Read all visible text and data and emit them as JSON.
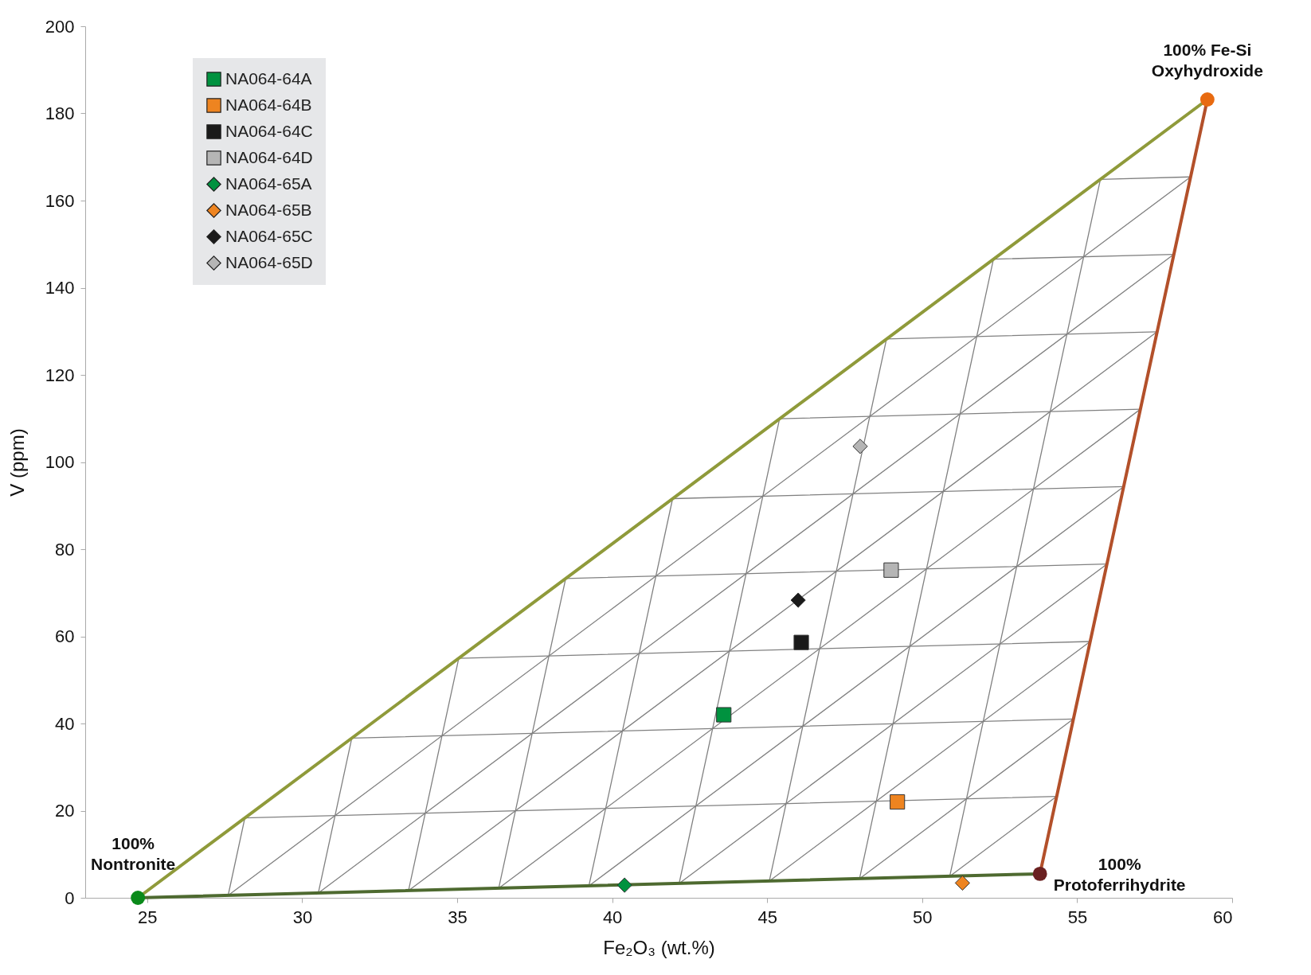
{
  "chart_data": {
    "type": "scatter",
    "xlabel": "Fe₂O₃ (wt.%)",
    "ylabel": "V (ppm)",
    "xlim": [
      23,
      60
    ],
    "ylim": [
      0,
      200
    ],
    "xticks": [
      25,
      30,
      35,
      40,
      45,
      50,
      55,
      60
    ],
    "yticks": [
      0,
      20,
      40,
      60,
      80,
      100,
      120,
      140,
      160,
      180,
      200
    ],
    "grid": false,
    "legend": "top left",
    "series": [
      {
        "type": "line",
        "color": "#808080",
        "x": [
          28.15,
          54.34,
          null,
          31.6,
          54.88,
          null,
          35.05,
          55.42,
          null,
          38.5,
          55.96,
          null,
          41.95,
          56.5,
          null,
          45.4,
          57.04,
          null,
          48.85,
          57.58,
          null,
          52.3,
          58.12,
          null,
          55.75,
          58.66
        ],
        "values": [
          18.32,
          23.27,
          null,
          36.64,
          41.04,
          null,
          54.96,
          58.81,
          null,
          73.28,
          76.58,
          null,
          91.6,
          94.35,
          null,
          109.92,
          112.12,
          null,
          128.24,
          129.89,
          null,
          146.56,
          147.66,
          null,
          164.88,
          165.43
        ]
      },
      {
        "type": "line",
        "color": "#808080",
        "x": [
          50.89,
          55.75,
          null,
          47.98,
          52.3,
          null,
          45.07,
          48.85,
          null,
          42.16,
          45.4,
          null,
          39.25,
          41.95,
          null,
          36.34,
          38.5,
          null,
          33.43,
          35.05,
          null,
          30.52,
          31.6,
          null,
          27.61,
          28.15
        ],
        "values": [
          4.95,
          164.88,
          null,
          4.4,
          146.56,
          null,
          3.85,
          128.24,
          null,
          3.3,
          109.92,
          null,
          2.75,
          91.6,
          null,
          2.2,
          73.28,
          null,
          1.65,
          54.96,
          null,
          1.1,
          36.64,
          null,
          0.55,
          18.32
        ]
      },
      {
        "type": "line",
        "color": "#808080",
        "x": [
          27.61,
          58.66,
          null,
          30.52,
          58.12,
          null,
          33.43,
          57.58,
          null,
          36.34,
          57.04,
          null,
          39.25,
          56.5,
          null,
          42.16,
          55.96,
          null,
          45.07,
          55.42,
          null,
          47.98,
          54.88,
          null,
          50.89,
          54.34
        ],
        "values": [
          0.55,
          165.43,
          null,
          1.1,
          147.66,
          null,
          1.65,
          129.89,
          null,
          2.2,
          112.12,
          null,
          2.75,
          94.35,
          null,
          3.3,
          76.58,
          null,
          3.85,
          58.81,
          null,
          4.4,
          41.04,
          null,
          4.95,
          23.27
        ]
      },
      {
        "type": "line",
        "color": "#4e6a30",
        "x": [
          24.7,
          53.8
        ],
        "values": [
          0,
          5.5
        ]
      },
      {
        "type": "line",
        "color": "#b3502a",
        "x": [
          53.8,
          59.2
        ],
        "values": [
          5.5,
          183.2
        ]
      },
      {
        "type": "line",
        "color": "#8f9a3a",
        "x": [
          24.7,
          59.2
        ],
        "values": [
          0,
          183.2
        ]
      },
      {
        "type": "scatter",
        "marker": "circle",
        "x": [
          24.7,
          53.8,
          59.2
        ],
        "values": [
          0,
          5.5,
          183.2
        ],
        "colors": [
          "#0a8a1a",
          "#6a2020",
          "#e86a10"
        ]
      },
      {
        "name": "NA064-64A",
        "marker": "square",
        "color": "#00923f",
        "x": [
          43.6
        ],
        "values": [
          42
        ]
      },
      {
        "name": "NA064-64B",
        "marker": "square",
        "color": "#ee8420",
        "x": [
          49.2
        ],
        "values": [
          22
        ]
      },
      {
        "name": "NA064-64C",
        "marker": "square",
        "color": "#1a1a1a",
        "x": [
          46.1
        ],
        "values": [
          58.6
        ]
      },
      {
        "name": "NA064-64D",
        "marker": "square",
        "color": "#b5b5b5",
        "x": [
          49.0
        ],
        "values": [
          75.2
        ]
      },
      {
        "name": "NA064-65A",
        "marker": "diamond",
        "color": "#00923f",
        "x": [
          40.4
        ],
        "values": [
          2.9
        ]
      },
      {
        "name": "NA064-65B",
        "marker": "diamond",
        "color": "#ee8420",
        "x": [
          51.3
        ],
        "values": [
          3.4
        ]
      },
      {
        "name": "NA064-65C",
        "marker": "diamond",
        "color": "#1a1a1a",
        "x": [
          46.0
        ],
        "values": [
          68.3
        ]
      },
      {
        "name": "NA064-65D",
        "marker": "diamond",
        "color": "#b5b5b5",
        "x": [
          48.0
        ],
        "values": [
          103.6
        ]
      }
    ],
    "annotations": [
      {
        "text": "100%\nNontronite",
        "x": 24.7,
        "y": 0
      },
      {
        "text": "100%\nProtoferrihydrite",
        "x": 53.8,
        "y": 5.5
      },
      {
        "text": "100%  Fe-Si\nOxyhydroxide",
        "x": 59.2,
        "y": 183.2
      }
    ]
  }
}
